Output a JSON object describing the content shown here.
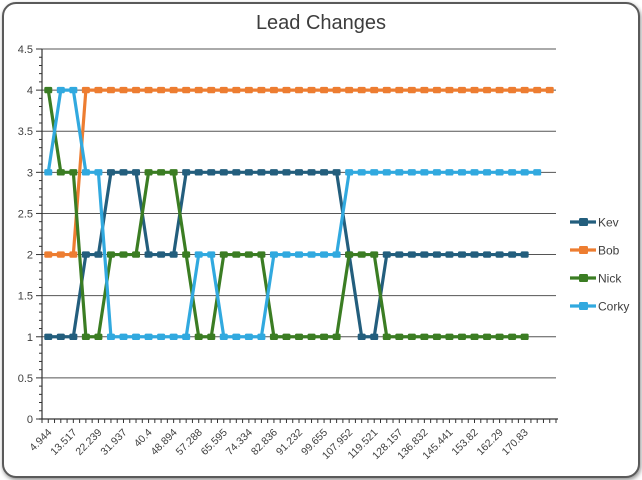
{
  "chart_data": {
    "type": "line",
    "title": "Lead Changes",
    "legend_position": "right",
    "grid": true,
    "n_categories": 41,
    "y_axis": {
      "min": 0,
      "max": 4.5,
      "major_step": 0.5,
      "minor_step": 0.1,
      "tick_labels": [
        "0",
        "0.5",
        "1",
        "1.5",
        "2",
        "2.5",
        "3",
        "3.5",
        "4",
        "4.5"
      ]
    },
    "x_axis": {
      "label_interval": 2,
      "tick_labels": [
        "4.944",
        "13.517",
        "22.239",
        "31.937",
        "40.4",
        "48.894",
        "57.288",
        "65.595",
        "74.334",
        "82.836",
        "91.232",
        "99.655",
        "107.952",
        "119.521",
        "128.157",
        "136.832",
        "145.441",
        "153.82",
        "162.29",
        "170.83"
      ]
    },
    "series": [
      {
        "name": "Kev",
        "color": "#235E7D",
        "values": [
          1,
          1,
          1,
          2,
          2,
          3,
          3,
          3,
          2,
          2,
          2,
          3,
          3,
          3,
          3,
          3,
          3,
          3,
          3,
          3,
          3,
          3,
          3,
          3,
          2,
          1,
          1,
          2,
          2,
          2,
          2,
          2,
          2,
          2,
          2,
          2,
          2,
          2,
          2
        ]
      },
      {
        "name": "Bob",
        "color": "#ED7D31",
        "values": [
          2,
          2,
          2,
          4,
          4,
          4,
          4,
          4,
          4,
          4,
          4,
          4,
          4,
          4,
          4,
          4,
          4,
          4,
          4,
          4,
          4,
          4,
          4,
          4,
          4,
          4,
          4,
          4,
          4,
          4,
          4,
          4,
          4,
          4,
          4,
          4,
          4,
          4,
          4,
          4,
          4
        ]
      },
      {
        "name": "Nick",
        "color": "#3B7D23",
        "values": [
          4,
          3,
          3,
          1,
          1,
          2,
          2,
          2,
          3,
          3,
          3,
          2,
          1,
          1,
          2,
          2,
          2,
          2,
          1,
          1,
          1,
          1,
          1,
          1,
          2,
          2,
          2,
          1,
          1,
          1,
          1,
          1,
          1,
          1,
          1,
          1,
          1,
          1,
          1
        ]
      },
      {
        "name": "Corky",
        "color": "#31A9DF",
        "values": [
          3,
          4,
          4,
          3,
          3,
          1,
          1,
          1,
          1,
          1,
          1,
          1,
          2,
          2,
          1,
          1,
          1,
          1,
          2,
          2,
          2,
          2,
          2,
          2,
          3,
          3,
          3,
          3,
          3,
          3,
          3,
          3,
          3,
          3,
          3,
          3,
          3,
          3,
          3,
          3
        ]
      }
    ]
  }
}
